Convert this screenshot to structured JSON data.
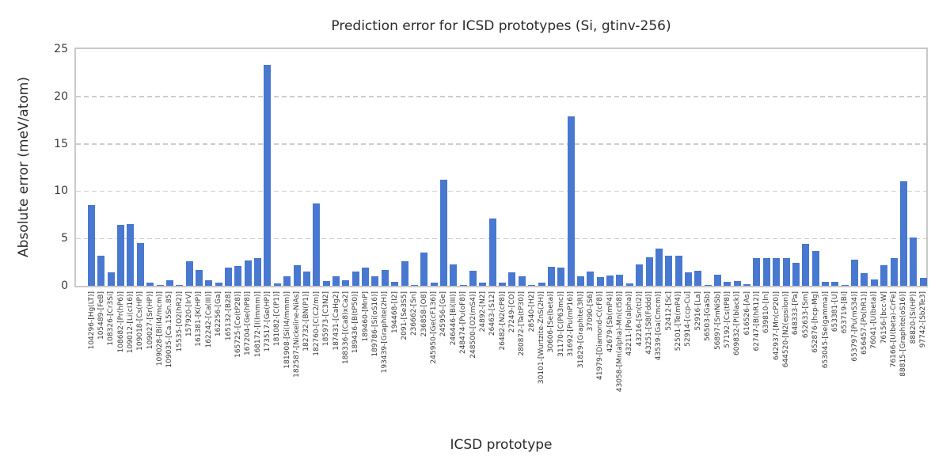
{
  "style": {
    "bar_color": "#4878d0",
    "grid_color": "#cdcdcd",
    "frame_color": "#c9c9c9",
    "text_color": "#262626",
    "tick_label_color": "#3b3b3b",
    "background_color": "#ffffff"
  },
  "chart_data": {
    "type": "bar",
    "title": "Prediction error for ICSD prototypes (Si, gtinv-256)",
    "xlabel": "ICSD prototype",
    "ylabel": "Absolute error (meV/atom)",
    "ylim": [
      0,
      25
    ],
    "yticks": [
      0,
      5,
      10,
      15,
      20,
      25
    ],
    "grid": "horizontal-dashed",
    "legend": "none",
    "categories": [
      "104296-[Hg(LT)]",
      "105489-[FeB]",
      "108326-[Cr3Si]",
      "108682-[Pr(hP6)]",
      "109012-[Li(cI16)]",
      "109018-[Cs(HP)]",
      "109027-[Sr(HP)]",
      "109028-[Bi(I4/mcm)]",
      "109035-[Ca.15Sn.85]",
      "15535-[O2(hR2)]",
      "157920-[IrV]",
      "161381-[K(HP)]",
      "162242-[Ca(III)]",
      "162256-[Ga]",
      "165132-[B28]",
      "165725-[Co(tP28)]",
      "167204-[Ge(hP8)]",
      "168172-[I(Immm)]",
      "173517-[Ge(HP)]",
      "181082-[C(P1)]",
      "181908-[Si(I4/mmm)]",
      "182587-[Nickeline-NiAs]",
      "182732-[BN(P1)]",
      "182760-[C(C2/m)]",
      "185973-[C3N2]",
      "187431-[CaHg2]",
      "188336-[(Ca8)xCa2]",
      "189436-[B(tP50)]",
      "189460-[MnP]",
      "189786-[Si(oS16)]",
      "193439-[Graphite(2H)]",
      "194468-[I2]",
      "2091-[Se3S5]",
      "236662-[Sn]",
      "236858-[O8]",
      "245950-[Ge(cF136)]",
      "245956-[Ge]",
      "246446-[Bi(III)]",
      "248474-[Pu(oF8)]",
      "248500-[O2(mS4)]",
      "24892-[N2]",
      "26463-[S12]",
      "26482-[N2(cP8)]",
      "27249-[CO]",
      "280872-[Ta(tP30)]",
      "28540-[H2]",
      "30101-[Wurtzite-ZnS(2H)]",
      "30606-[Se(beta)]",
      "31170-[C(P63mc)]",
      "31692-[Pu(mP16)]",
      "31829-[Graphite(3R)]",
      "37090-[S6]",
      "41979-[Diamond-C(cF8)]",
      "42679-[Sb(mP4)]",
      "43058-[Mn(alpha)-Mn(cI58)]",
      "43211-[Po(alpha)]",
      "43216-[Sn(tI2)]",
      "43251-[S8(Fddd)]",
      "43539-[Ga(Cmcm)]",
      "52412-[Sc]",
      "52501-[Te(mP4)]",
      "52914-[ccp-Cu]",
      "52916-[La]",
      "56503-[GaSb]",
      "56897-[SmNiSb]",
      "57192-[Cs(tP8)]",
      "609832-[P(black)]",
      "616526-[As]",
      "62747-[B(hR12)]",
      "639810-[In]",
      "642937-[Mn(cP20)]",
      "644520-[N2(epsilon)]",
      "648333-[Pa]",
      "652633-[Sm]",
      "652876-[hcp-Mg]",
      "653045-[Se(gamma)]",
      "653381-[U]",
      "653719-[Bi]",
      "653797-[Pu(mS34)]",
      "656457-[Po(hR1)]",
      "76041-[U(beta)]",
      "76156-[bcc-W]",
      "76166-[U(beta)-CrFe]",
      "88815-[Graphite(oS16)]",
      "88820-[Si(HP)]",
      "97742-[Sb2Te3]"
    ],
    "values": [
      8.5,
      3.2,
      1.4,
      6.4,
      6.5,
      4.5,
      0.35,
      0.05,
      0.55,
      0.05,
      2.6,
      1.7,
      0.6,
      0.3,
      1.9,
      2.1,
      2.7,
      2.9,
      23.3,
      0.25,
      1.0,
      2.2,
      1.5,
      8.7,
      0.5,
      1.0,
      0.6,
      1.5,
      1.9,
      1.0,
      1.7,
      0.45,
      2.6,
      0.05,
      3.5,
      0.35,
      11.2,
      2.3,
      0.05,
      1.6,
      0.35,
      7.1,
      0.35,
      1.4,
      1.0,
      0.05,
      0.35,
      2.0,
      1.9,
      17.9,
      1.0,
      1.5,
      0.95,
      1.05,
      1.2,
      0.25,
      2.3,
      3.0,
      3.95,
      3.2,
      3.2,
      1.4,
      1.6,
      0.05,
      1.15,
      0.4,
      0.5,
      0.2,
      2.9,
      2.9,
      2.9,
      2.9,
      2.4,
      4.4,
      3.7,
      0.4,
      0.4,
      0.05,
      2.8,
      1.3,
      0.7,
      2.2,
      2.9,
      11.0,
      5.1,
      0.8
    ]
  }
}
